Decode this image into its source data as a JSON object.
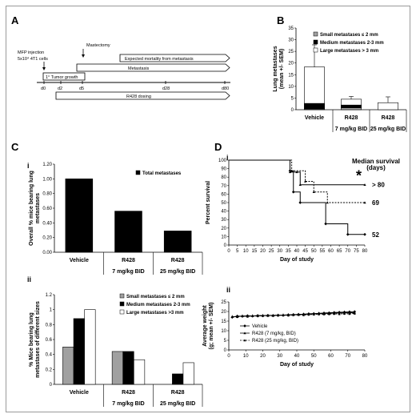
{
  "panel_labels": {
    "A": "A",
    "B": "B",
    "C": "C",
    "D": "D"
  },
  "sub_labels": {
    "c_i": "i",
    "c_ii": "ii",
    "d_i": "i",
    "d_ii": "ii"
  },
  "timeline": {
    "mfp_injection": "MFP injection",
    "cells": "5x10⁴ 4T1 cells",
    "mastectomy": "Mastectomy",
    "expected_mortality": "Expected mortality from metastasis",
    "metastasis": "Metastasis",
    "tumor_growth": "1° Tumor growth",
    "days": [
      "d0",
      "d2",
      "d5",
      "d28",
      "d80"
    ],
    "dosing": "R428 dosing"
  },
  "chart_data": [
    {
      "id": "B",
      "type": "bar",
      "stacked": true,
      "categories": [
        "Vehicle",
        "R428",
        "R428"
      ],
      "category_doses": [
        "",
        "7 mg/kg BID",
        "25 mg/kg BID"
      ],
      "series": [
        {
          "name": "Small metastases ≤ 2 mm",
          "values": [
            0.3,
            0.8,
            0.0
          ],
          "color": "#a0a0a0"
        },
        {
          "name": "Medium metastases 2-3 mm",
          "values": [
            2.4,
            1.2,
            0.0
          ],
          "color": "#000000"
        },
        {
          "name": "Large metastases > 3 mm",
          "values": [
            15.6,
            2.5,
            3.0
          ],
          "color": "#ffffff"
        }
      ],
      "error_plus": [
        9.5,
        1.2,
        2.5
      ],
      "ylabel": "Lung metastases\n(mean +/- SEM)",
      "ylim": [
        0,
        35
      ],
      "yticks": [
        "0",
        "5",
        "10",
        "15",
        "20",
        "25",
        "30",
        "35"
      ]
    },
    {
      "id": "C-i",
      "type": "bar",
      "categories": [
        "Vehicle",
        "R428",
        "R428"
      ],
      "category_doses": [
        "",
        "7 mg/kg BID",
        "25 mg/kg BID"
      ],
      "series": [
        {
          "name": "Total metastases",
          "values": [
            1.0,
            0.56,
            0.29
          ],
          "color": "#000000"
        }
      ],
      "ylabel": "Overall % mice bearing lung\nmetastases",
      "ylim": [
        0,
        1.2
      ],
      "yticks": [
        "0.00",
        "0.20",
        "0.40",
        "0.60",
        "0.80",
        "1.00",
        "1.20"
      ]
    },
    {
      "id": "C-ii",
      "type": "bar",
      "categories": [
        "Vehicle",
        "R428",
        "R428"
      ],
      "category_doses": [
        "",
        "7 mg/kg BID",
        "25 mg/kg BID"
      ],
      "series": [
        {
          "name": "Small metastases ≤ 2 mm",
          "values": [
            0.5,
            0.44,
            0.0
          ],
          "color": "#a0a0a0"
        },
        {
          "name": "Medium metastases 2-3 mm",
          "values": [
            0.88,
            0.44,
            0.14
          ],
          "color": "#000000"
        },
        {
          "name": "Large metastases >3 mm",
          "values": [
            1.0,
            0.33,
            0.29
          ],
          "color": "#ffffff"
        }
      ],
      "ylabel": "% Mice bearing lung\nmetastases of different sizes",
      "ylim": [
        0,
        1.2
      ],
      "yticks": [
        "0",
        "0.2",
        "0.4",
        "0.6",
        "0.8",
        "1",
        "1.2"
      ]
    },
    {
      "id": "D-i",
      "type": "line",
      "step": true,
      "title": "Median survival\n(days)",
      "xlabel": "Day of study",
      "ylabel": "Percent survival",
      "xlim": [
        0,
        80
      ],
      "ylim": [
        0,
        100
      ],
      "xticks": [
        "0",
        "5",
        "10",
        "15",
        "20",
        "25",
        "30",
        "35",
        "40",
        "45",
        "50",
        "55",
        "60",
        "65",
        "70",
        "75",
        "80"
      ],
      "yticks": [
        "0",
        "10",
        "20",
        "30",
        "40",
        "50",
        "60",
        "70",
        "80",
        "90",
        "100"
      ],
      "series": [
        {
          "name": "Vehicle",
          "style": "solid",
          "median_label": "52",
          "x": [
            0,
            36,
            38,
            42,
            57,
            70,
            80
          ],
          "y": [
            100,
            87.5,
            62.5,
            50,
            25,
            12.5,
            12.5
          ]
        },
        {
          "name": "R428 (7 mg/kg, BID)",
          "style": "solid",
          "median_label": "> 80",
          "x": [
            0,
            36,
            40,
            42,
            80
          ],
          "y": [
            100,
            86,
            86,
            71,
            71
          ]
        },
        {
          "name": "R428 (25 mg/kg, BID)",
          "style": "dashed",
          "median_label": "69",
          "x": [
            0,
            37,
            45,
            50,
            58,
            80
          ],
          "y": [
            100,
            87.5,
            75,
            62.5,
            50,
            50
          ]
        }
      ],
      "annotation": "*"
    },
    {
      "id": "D-ii",
      "type": "line",
      "xlabel": "Day of study",
      "ylabel": "Average weight\n(g; mean +/- SEM)",
      "xlim": [
        0,
        80
      ],
      "ylim": [
        0,
        25
      ],
      "xticks": [
        "0",
        "10",
        "20",
        "30",
        "40",
        "50",
        "60",
        "70",
        "80"
      ],
      "yticks": [
        "0",
        "5",
        "10",
        "15",
        "20",
        "25"
      ],
      "series": [
        {
          "name": "Vehicle",
          "style": "solid",
          "x": [
            2,
            5,
            8,
            11,
            14,
            17,
            20,
            23,
            26,
            29,
            32,
            35,
            38,
            41,
            44,
            47,
            50,
            53,
            56,
            59,
            62,
            65,
            68,
            71,
            74
          ],
          "y": [
            17.0,
            17.6,
            17.5,
            17.8,
            17.6,
            17.9,
            17.8,
            18.0,
            17.9,
            18.1,
            18.0,
            18.3,
            18.4,
            18.5,
            18.6,
            18.8,
            18.9,
            19.0,
            19.2,
            19.3,
            19.5,
            19.6,
            19.7,
            19.8,
            19.9
          ]
        },
        {
          "name": "R428 (7 mg/kg, BID)",
          "style": "solid",
          "x": [
            2,
            5,
            8,
            11,
            14,
            17,
            20,
            23,
            26,
            29,
            32,
            35,
            38,
            41,
            44,
            47,
            50,
            53,
            56,
            59,
            62,
            65,
            68,
            71,
            74
          ],
          "y": [
            17.2,
            17.4,
            17.6,
            17.5,
            17.7,
            17.7,
            17.9,
            17.8,
            18.0,
            18.0,
            18.2,
            18.2,
            18.3,
            18.4,
            18.5,
            18.6,
            18.7,
            18.9,
            19.0,
            19.0,
            19.2,
            19.2,
            19.3,
            19.3,
            19.4
          ]
        },
        {
          "name": "R428 (25 mg/kg, BID)",
          "style": "dashed",
          "x": [
            2,
            5,
            8,
            11,
            14,
            17,
            20,
            23,
            26,
            29,
            32,
            35,
            38,
            41,
            44,
            47,
            50,
            53,
            56,
            59,
            62,
            65,
            68,
            71,
            74
          ],
          "y": [
            17.4,
            17.2,
            17.7,
            17.4,
            17.8,
            17.6,
            17.8,
            17.9,
            17.8,
            18.0,
            18.1,
            18.0,
            18.2,
            18.3,
            18.2,
            18.4,
            18.5,
            18.6,
            18.6,
            18.7,
            18.8,
            18.7,
            18.9,
            18.8,
            19.0
          ]
        }
      ]
    }
  ]
}
